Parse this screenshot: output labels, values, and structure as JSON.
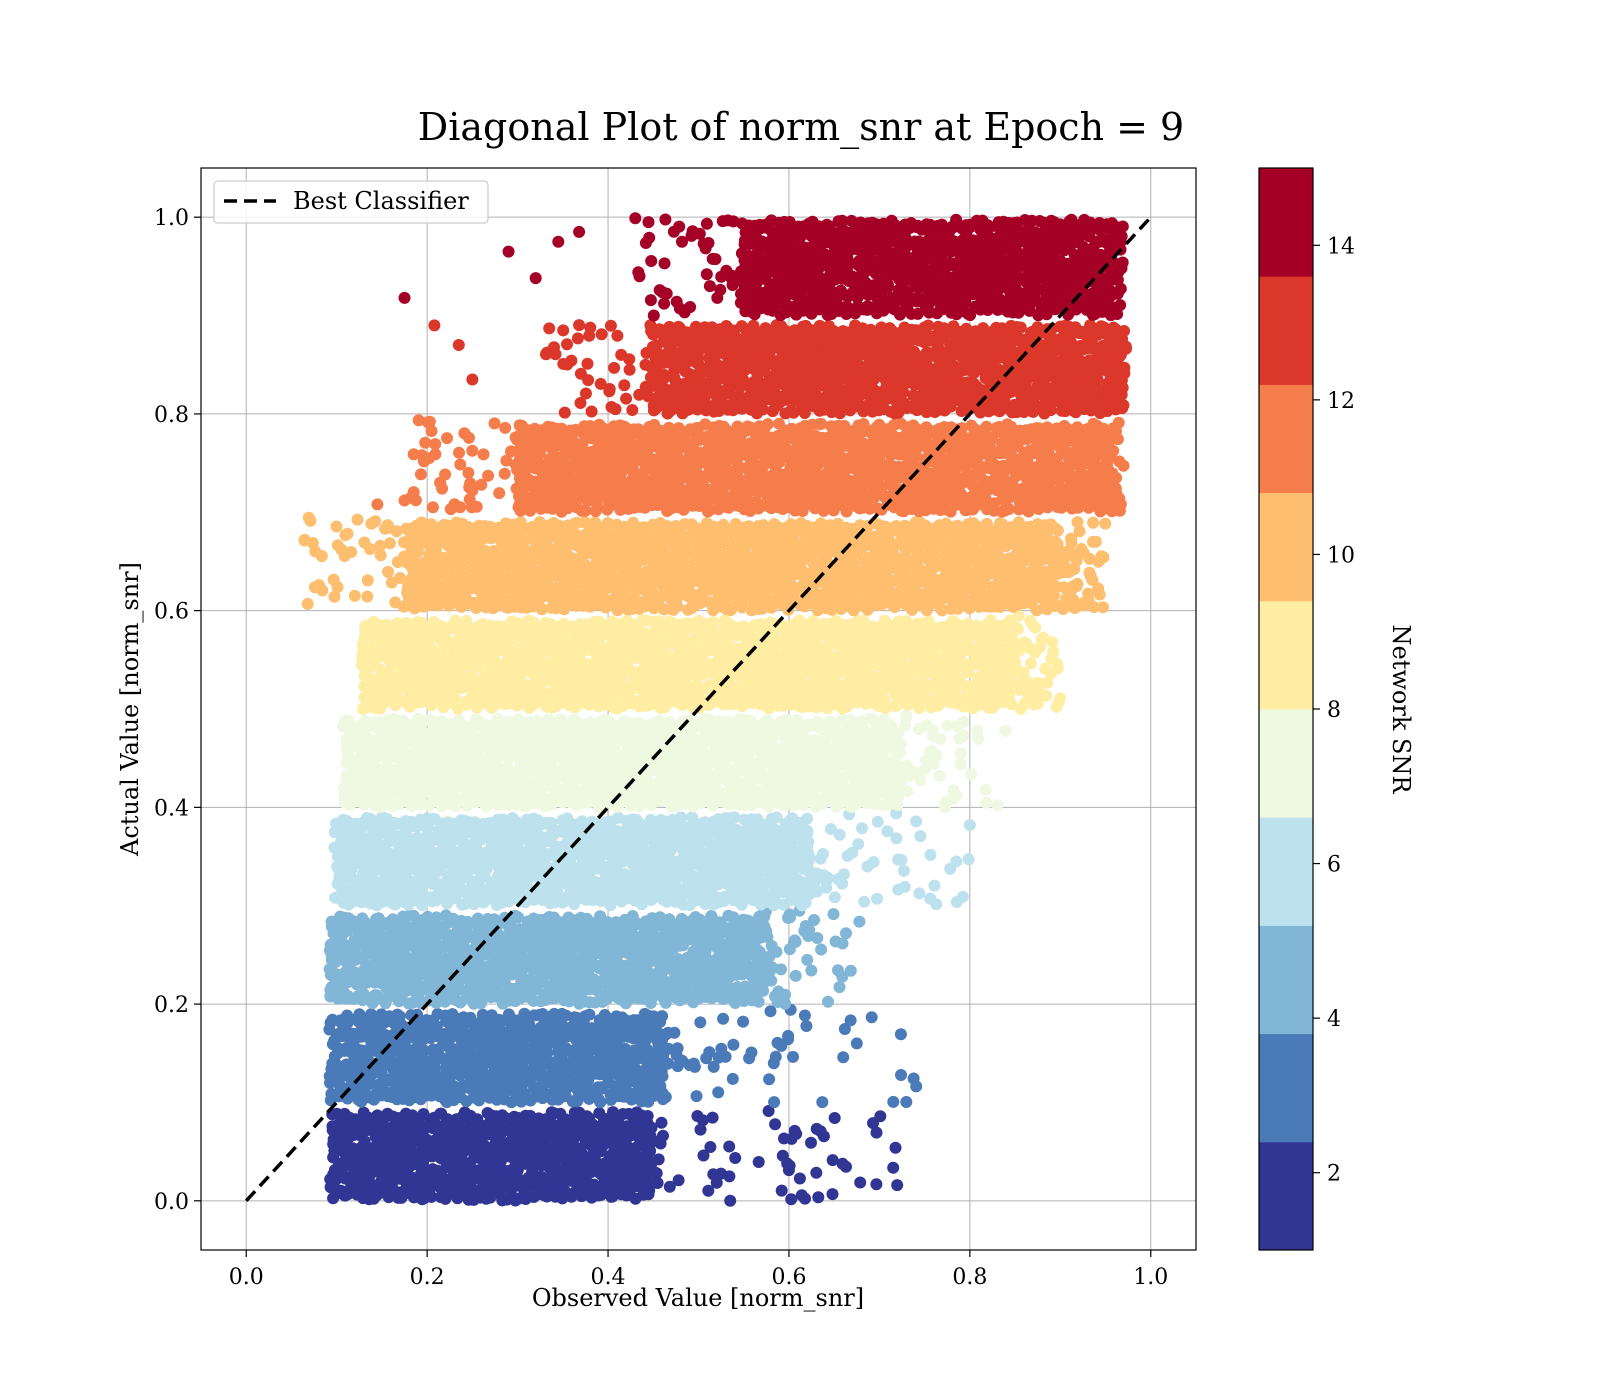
{
  "chart_data": {
    "type": "scatter",
    "title": "Diagonal Plot of norm_snr at Epoch = 9",
    "xlabel": "Observed Value [norm_snr]",
    "ylabel": "Actual Value [norm_snr]",
    "xlim": [
      -0.05,
      1.05
    ],
    "ylim": [
      -0.05,
      1.05
    ],
    "xticks": [
      "0.0",
      "0.2",
      "0.4",
      "0.6",
      "0.8",
      "1.0"
    ],
    "yticks": [
      "0.0",
      "0.2",
      "0.4",
      "0.6",
      "0.8",
      "1.0"
    ],
    "grid": true,
    "legend": {
      "placement": "upper-left",
      "entries": [
        "Best Classifier"
      ]
    },
    "reference_line": {
      "name": "Best Classifier",
      "style": "dashed",
      "color": "#000000",
      "x": [
        0.0,
        1.0
      ],
      "y": [
        0.0,
        1.0
      ]
    },
    "colorbar": {
      "label": "Network SNR",
      "range": [
        1,
        15
      ],
      "ticks": [
        "2",
        "4",
        "6",
        "8",
        "10",
        "12",
        "14"
      ],
      "colormap": "RdYlBu_r"
    },
    "bands": [
      {
        "snr": 1.7,
        "color": "#313695",
        "y_range": [
          0.0,
          0.095
        ],
        "x_core": [
          0.095,
          0.45
        ],
        "x_tail": [
          0.45,
          0.72
        ]
      },
      {
        "snr": 3.1,
        "color": "#4a7ab7",
        "y_range": [
          0.1,
          0.195
        ],
        "x_core": [
          0.095,
          0.46
        ],
        "x_tail": [
          0.46,
          0.75
        ]
      },
      {
        "snr": 4.5,
        "color": "#82b6d6",
        "y_range": [
          0.2,
          0.295
        ],
        "x_core": [
          0.095,
          0.57
        ],
        "x_tail": [
          0.57,
          0.68
        ]
      },
      {
        "snr": 5.9,
        "color": "#bde2ee",
        "y_range": [
          0.3,
          0.395
        ],
        "x_core": [
          0.1,
          0.62
        ],
        "x_tail": [
          0.62,
          0.8
        ]
      },
      {
        "snr": 7.3,
        "color": "#eff8e0",
        "y_range": [
          0.4,
          0.495
        ],
        "x_core": [
          0.11,
          0.72
        ],
        "x_tail": [
          0.72,
          0.84
        ]
      },
      {
        "snr": 8.7,
        "color": "#feeda2",
        "y_range": [
          0.5,
          0.595
        ],
        "x_core": [
          0.13,
          0.85
        ],
        "x_tail": [
          0.85,
          0.9
        ]
      },
      {
        "snr": 10.1,
        "color": "#fdbe6f",
        "y_range": [
          0.6,
          0.695
        ],
        "x_core": [
          0.18,
          0.9
        ],
        "x_tail": [
          0.9,
          0.95
        ]
      },
      {
        "snr": 11.5,
        "color": "#f57d4b",
        "y_range": [
          0.7,
          0.795
        ],
        "x_core": [
          0.3,
          0.95
        ],
        "x_tail": [
          0.95,
          0.97
        ]
      },
      {
        "snr": 12.9,
        "color": "#db372b",
        "y_range": [
          0.8,
          0.895
        ],
        "x_core": [
          0.45,
          0.97
        ],
        "x_tail": [
          0.97,
          0.97
        ]
      },
      {
        "snr": 14.3,
        "color": "#a50026",
        "y_range": [
          0.9,
          1.0
        ],
        "x_core": [
          0.55,
          0.97
        ],
        "x_tail": [
          0.97,
          0.97
        ]
      }
    ],
    "outliers": [
      {
        "x": 0.175,
        "y": 0.918,
        "color": "#a50026"
      },
      {
        "x": 0.29,
        "y": 0.965,
        "color": "#a50026"
      },
      {
        "x": 0.32,
        "y": 0.938,
        "color": "#a50026"
      },
      {
        "x": 0.345,
        "y": 0.975,
        "color": "#a50026"
      },
      {
        "x": 0.368,
        "y": 0.985,
        "color": "#a50026"
      },
      {
        "x": 0.208,
        "y": 0.89,
        "color": "#db372b"
      },
      {
        "x": 0.235,
        "y": 0.87,
        "color": "#db372b"
      },
      {
        "x": 0.25,
        "y": 0.835,
        "color": "#db372b"
      },
      {
        "x": 0.145,
        "y": 0.708,
        "color": "#f57d4b"
      },
      {
        "x": 0.175,
        "y": 0.712,
        "color": "#f57d4b"
      },
      {
        "x": 0.12,
        "y": 0.615,
        "color": "#fdbe6f"
      },
      {
        "x": 0.785,
        "y": 0.345,
        "color": "#bde2ee"
      },
      {
        "x": 0.8,
        "y": 0.382,
        "color": "#bde2ee"
      },
      {
        "x": 0.79,
        "y": 0.455,
        "color": "#eff8e0"
      },
      {
        "x": 0.66,
        "y": 0.146,
        "color": "#4a7ab7"
      },
      {
        "x": 0.675,
        "y": 0.16,
        "color": "#4a7ab7"
      },
      {
        "x": 0.693,
        "y": 0.079,
        "color": "#313695"
      },
      {
        "x": 0.701,
        "y": 0.086,
        "color": "#313695"
      },
      {
        "x": 0.608,
        "y": 0.068,
        "color": "#313695"
      },
      {
        "x": 0.598,
        "y": 0.038,
        "color": "#313695"
      }
    ]
  }
}
